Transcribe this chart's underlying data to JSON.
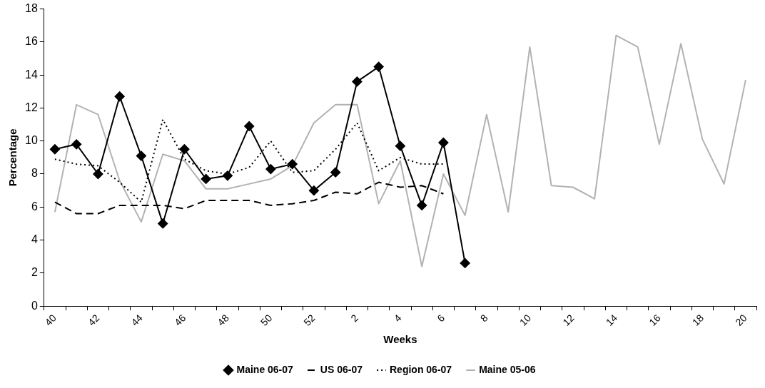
{
  "chart_data": {
    "type": "line",
    "xlabel": "Weeks",
    "ylabel": "Percentage",
    "categories": [
      "40",
      null,
      "42",
      null,
      "44",
      null,
      "46",
      null,
      "48",
      null,
      "50",
      null,
      "52",
      null,
      "2",
      null,
      "4",
      null,
      "6",
      null,
      "8",
      null,
      "10",
      null,
      "12",
      null,
      "14",
      null,
      "16",
      null,
      "18",
      null,
      "20"
    ],
    "ylim": [
      0,
      18
    ],
    "yticks": [
      0,
      2,
      4,
      6,
      8,
      10,
      12,
      14,
      16,
      18
    ],
    "grid": false,
    "legend": "bottom",
    "series": [
      {
        "name": "Maine 06-07",
        "color": "#000000",
        "marker": "diamond",
        "line_style": "solid",
        "values": [
          9.5,
          9.8,
          8.0,
          12.7,
          9.1,
          5.0,
          9.5,
          7.7,
          7.9,
          10.9,
          8.3,
          8.6,
          7.0,
          8.1,
          13.6,
          14.5,
          9.7,
          6.1,
          9.9,
          2.6,
          null,
          null,
          null,
          null,
          null,
          null,
          null,
          null,
          null,
          null,
          null,
          null,
          null
        ]
      },
      {
        "name": "US 06-07",
        "color": "#000000",
        "marker": "none",
        "line_style": "dashed",
        "values": [
          6.3,
          5.6,
          5.6,
          6.1,
          6.1,
          6.1,
          5.9,
          6.4,
          6.4,
          6.4,
          6.1,
          6.2,
          6.4,
          6.9,
          6.8,
          7.5,
          7.2,
          7.3,
          6.8,
          null,
          null,
          null,
          null,
          null,
          null,
          null,
          null,
          null,
          null,
          null,
          null,
          null,
          null
        ]
      },
      {
        "name": "Region 06-07",
        "color": "#000000",
        "marker": "none",
        "line_style": "dotted",
        "values": [
          8.9,
          8.6,
          8.5,
          7.5,
          6.3,
          11.3,
          8.9,
          8.2,
          8.0,
          8.4,
          10.0,
          8.1,
          8.2,
          9.5,
          11.1,
          8.2,
          9.0,
          8.6,
          8.6,
          null,
          null,
          null,
          null,
          null,
          null,
          null,
          null,
          null,
          null,
          null,
          null,
          null,
          null
        ]
      },
      {
        "name": "Maine 05-06",
        "color": "#b2b2b2",
        "marker": "none",
        "line_style": "solid",
        "values": [
          5.7,
          12.2,
          11.6,
          7.6,
          5.1,
          9.2,
          8.8,
          7.1,
          7.1,
          7.4,
          7.7,
          8.5,
          11.1,
          12.2,
          12.2,
          6.2,
          8.8,
          2.4,
          8.0,
          5.5,
          11.6,
          5.7,
          15.7,
          7.3,
          7.2,
          6.5,
          16.4,
          15.7,
          9.8,
          15.9,
          10.1,
          7.4,
          13.7
        ]
      }
    ]
  }
}
